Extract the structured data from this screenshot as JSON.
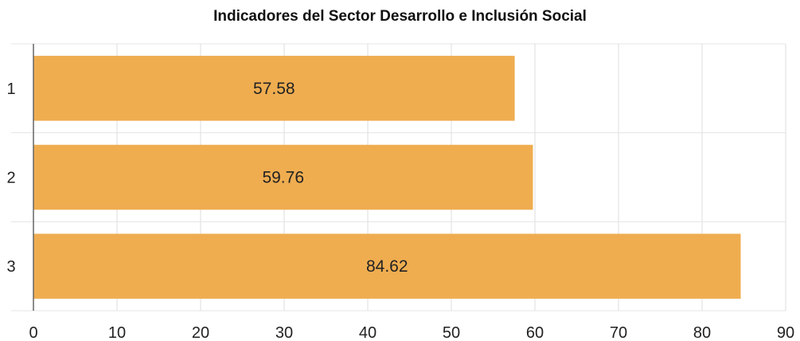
{
  "chart_data": {
    "type": "bar",
    "orientation": "horizontal",
    "title": "Indicadores del Sector Desarrollo e Inclusión Social",
    "categories": [
      "1",
      "2",
      "3"
    ],
    "values": [
      57.58,
      59.76,
      84.62
    ],
    "data_labels": [
      "57.58",
      "59.76",
      "84.62"
    ],
    "xlim": [
      0,
      90
    ],
    "x_ticks": [
      0,
      10,
      20,
      30,
      40,
      50,
      60,
      70,
      80,
      90
    ],
    "xlabel": "",
    "ylabel": "",
    "grid": true,
    "legend": "none",
    "bar_color": "#EFAD50"
  }
}
